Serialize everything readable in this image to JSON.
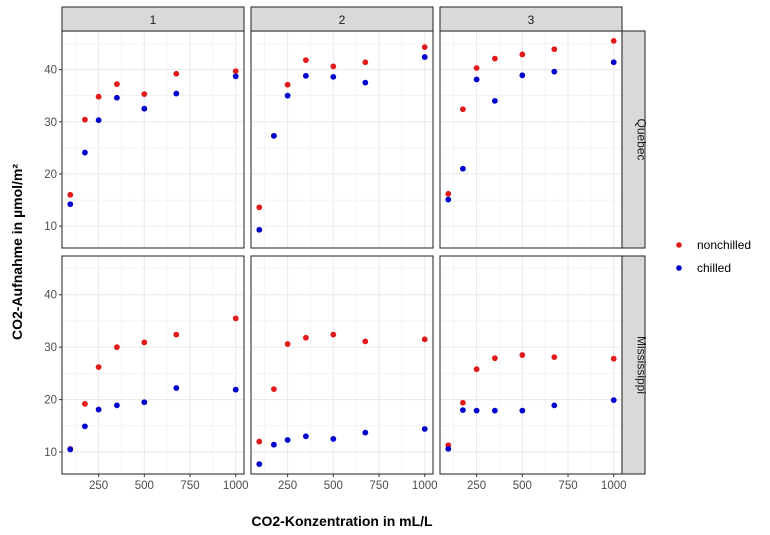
{
  "chart_data": {
    "type": "scatter",
    "title": "",
    "xlabel": "CO2-Konzentration in mL/L",
    "ylabel": "CO2-Aufnahme in µmol/m²",
    "xlim": [
      49.75,
      1045.25
    ],
    "ylim": [
      5.81,
      47.39
    ],
    "x_ticks": [
      250,
      500,
      750,
      1000
    ],
    "x_tick_labels": [
      "250",
      "500",
      "750",
      "1000"
    ],
    "y_ticks": [
      10,
      20,
      30,
      40
    ],
    "y_tick_labels": [
      "10",
      "20",
      "30",
      "40"
    ],
    "grid": true,
    "facet_columns": [
      "1",
      "2",
      "3"
    ],
    "facet_rows": [
      "Quebec",
      "Mississippi"
    ],
    "legend": {
      "placement": "right",
      "entries": [
        {
          "label": "nonchilled",
          "color": "#E31A1C"
        },
        {
          "label": "chilled",
          "color": "#0000CD"
        }
      ]
    },
    "x": [
      95,
      175,
      250,
      350,
      500,
      675,
      1000
    ],
    "panels": [
      {
        "row": "Quebec",
        "col": "1",
        "series": [
          {
            "name": "nonchilled",
            "values": [
              16.0,
              30.4,
              34.8,
              37.2,
              35.3,
              39.2,
              39.7
            ]
          },
          {
            "name": "chilled",
            "values": [
              14.2,
              24.1,
              30.3,
              34.6,
              32.5,
              35.4,
              38.7
            ]
          }
        ]
      },
      {
        "row": "Quebec",
        "col": "2",
        "series": [
          {
            "name": "nonchilled",
            "values": [
              13.6,
              27.3,
              37.1,
              41.8,
              40.6,
              41.4,
              44.3
            ]
          },
          {
            "name": "chilled",
            "values": [
              9.3,
              27.3,
              35.0,
              38.8,
              38.6,
              37.5,
              42.4
            ]
          }
        ]
      },
      {
        "row": "Quebec",
        "col": "3",
        "series": [
          {
            "name": "nonchilled",
            "values": [
              16.2,
              32.4,
              40.3,
              42.1,
              42.9,
              43.9,
              45.5
            ]
          },
          {
            "name": "chilled",
            "values": [
              15.1,
              21.0,
              38.1,
              34.0,
              38.9,
              39.6,
              41.4
            ]
          }
        ]
      },
      {
        "row": "Mississippi",
        "col": "1",
        "series": [
          {
            "name": "nonchilled",
            "values": [
              10.6,
              19.2,
              26.2,
              30.0,
              30.9,
              32.4,
              35.5
            ]
          },
          {
            "name": "chilled",
            "values": [
              10.5,
              14.9,
              18.1,
              18.9,
              19.5,
              22.2,
              21.9
            ]
          }
        ]
      },
      {
        "row": "Mississippi",
        "col": "2",
        "series": [
          {
            "name": "nonchilled",
            "values": [
              12.0,
              22.0,
              30.6,
              31.8,
              32.4,
              31.1,
              31.5
            ]
          },
          {
            "name": "chilled",
            "values": [
              7.7,
              11.4,
              12.3,
              13.0,
              12.5,
              13.7,
              14.4
            ]
          }
        ]
      },
      {
        "row": "Mississippi",
        "col": "3",
        "series": [
          {
            "name": "nonchilled",
            "values": [
              11.3,
              19.4,
              25.8,
              27.9,
              28.5,
              28.1,
              27.8
            ]
          },
          {
            "name": "chilled",
            "values": [
              10.6,
              18.0,
              17.9,
              17.9,
              17.9,
              18.9,
              19.9
            ]
          }
        ]
      }
    ]
  }
}
